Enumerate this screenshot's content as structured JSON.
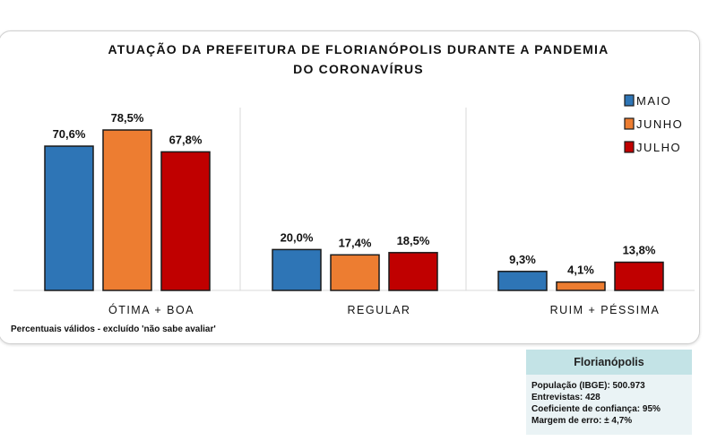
{
  "chart_data": {
    "type": "bar",
    "title": "ATUAÇÃO DA PREFEITURA DE FLORIANÓPOLIS DURANTE A PANDEMIA DO CORONAVÍRUS",
    "title_lines": [
      "ATUAÇÃO DA PREFEITURA DE FLORIANÓPOLIS DURANTE A PANDEMIA",
      "DO CORONAVÍRUS"
    ],
    "categories": [
      "ÓTIMA + BOA",
      "REGULAR",
      "RUIM + PÉSSIMA"
    ],
    "series": [
      {
        "name": "MAIO",
        "color": "#2e75b6",
        "values": [
          70.6,
          20.0,
          9.3
        ],
        "labels": [
          "70,6%",
          "20,0%",
          "9,3%"
        ]
      },
      {
        "name": "JUNHO",
        "color": "#ed7d31",
        "values": [
          78.5,
          17.4,
          4.1
        ],
        "labels": [
          "78,5%",
          "17,4%",
          "4,1%"
        ]
      },
      {
        "name": "JULHO",
        "color": "#c00000",
        "values": [
          67.8,
          18.5,
          13.8
        ],
        "labels": [
          "67,8%",
          "18,5%",
          "13,8%"
        ]
      }
    ],
    "ylim": [
      0,
      90
    ],
    "legend": "top-right",
    "grid": false,
    "note": "Percentuais válidos - excluído 'não sabe avaliar'"
  },
  "info": {
    "title": "Florianópolis",
    "lines": [
      "População (IBGE): 500.973",
      "Entrevistas: 428",
      "Coeficiente de confiança: 95%",
      "Margem de erro: ± 4,7%"
    ]
  }
}
